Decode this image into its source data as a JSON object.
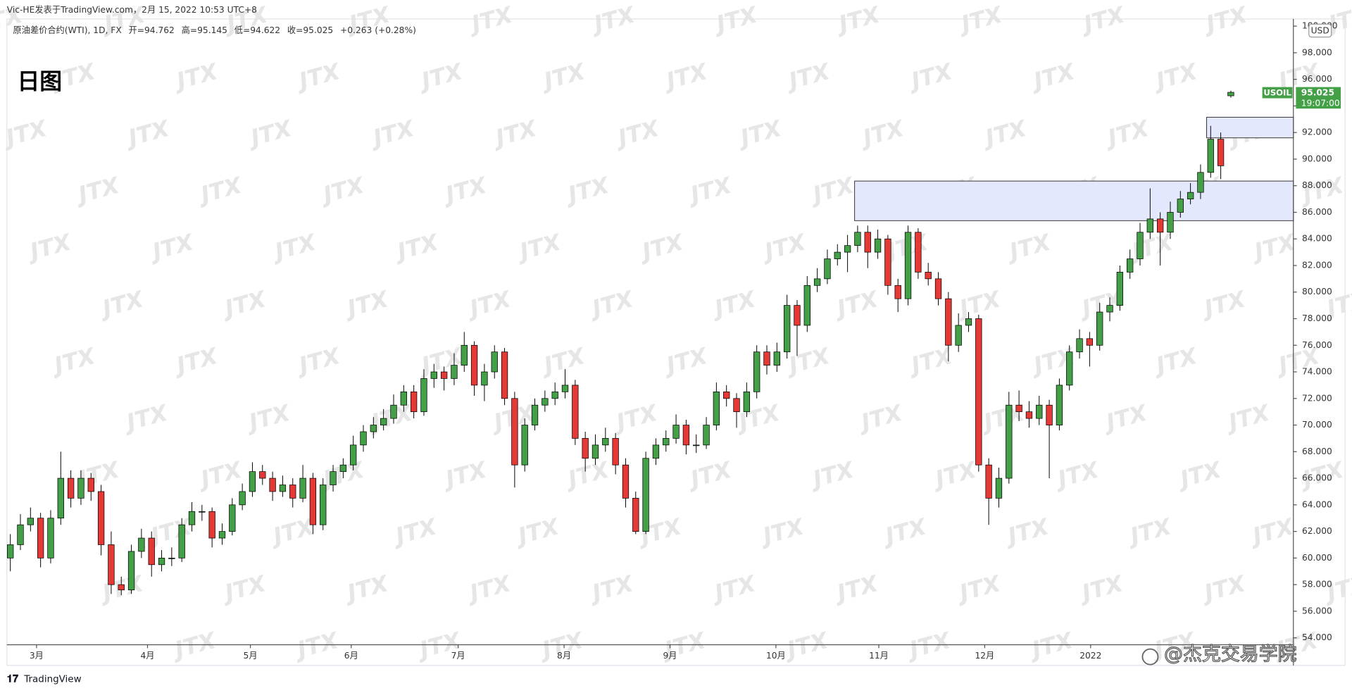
{
  "header": {
    "author_line": "Vic-HE发表于TradingView.com，2月 15, 2022 10:53 UTC+8",
    "symbol_line": "原油差价合约(WTI), 1D, FX",
    "open_label": "开=",
    "high_label": "高=",
    "low_label": "低=",
    "close_label": "收=",
    "change": "+0.263 (+0.28%)",
    "timeframe_title": "日图"
  },
  "footer": {
    "brand": "TradingView",
    "credit": "@杰克交易学院"
  },
  "chart_data": {
    "type": "candlestick",
    "currency": "USD",
    "symbol_tag": "USOIL",
    "countdown": "19:07:00",
    "watermark": "JTX",
    "up_color": "#43a047",
    "down_color": "#e53935",
    "border_color": "#000000",
    "zone_color": "#e3e8fd",
    "xlim": [
      -0.34,
      127.2
    ],
    "ylim": [
      53.48,
      100.54
    ],
    "yticks": [
      {
        "value": 54,
        "label": "54.000"
      },
      {
        "value": 56,
        "label": "56.000"
      },
      {
        "value": 58,
        "label": "58.000"
      },
      {
        "value": 60,
        "label": "60.000"
      },
      {
        "value": 62,
        "label": "62.000"
      },
      {
        "value": 64,
        "label": "64.000"
      },
      {
        "value": 66,
        "label": "66.000"
      },
      {
        "value": 68,
        "label": "68.000"
      },
      {
        "value": 70,
        "label": "70.000"
      },
      {
        "value": 72,
        "label": "72.000"
      },
      {
        "value": 74,
        "label": "74.000"
      },
      {
        "value": 76,
        "label": "76.000"
      },
      {
        "value": 78,
        "label": "78.000"
      },
      {
        "value": 80,
        "label": "80.000"
      },
      {
        "value": 82,
        "label": "82.000"
      },
      {
        "value": 84,
        "label": "84.000"
      },
      {
        "value": 86,
        "label": "86.000"
      },
      {
        "value": 88,
        "label": "88.000"
      },
      {
        "value": 90,
        "label": "90.000"
      },
      {
        "value": 92,
        "label": "92.000"
      },
      {
        "value": 94,
        "label": "94.000"
      },
      {
        "value": 96,
        "label": "96.000"
      },
      {
        "value": 98,
        "label": "98.000"
      },
      {
        "value": 100,
        "label": "100.000"
      }
    ],
    "xticks": [
      {
        "value": 2.6,
        "label": "3月"
      },
      {
        "value": 13.6,
        "label": "4月"
      },
      {
        "value": 23.8,
        "label": "5月"
      },
      {
        "value": 33.8,
        "label": "6月"
      },
      {
        "value": 44.4,
        "label": "7月"
      },
      {
        "value": 54.9,
        "label": "8月"
      },
      {
        "value": 65.4,
        "label": "9月"
      },
      {
        "value": 75.9,
        "label": "10月"
      },
      {
        "value": 86.1,
        "label": "11月"
      },
      {
        "value": 96.6,
        "label": "12月"
      },
      {
        "value": 107.1,
        "label": "2022"
      }
    ],
    "zones": [
      {
        "start": 83.7,
        "range": [
          85.37,
          88.35
        ]
      },
      {
        "start": 118.6,
        "range": [
          91.6,
          93.15
        ]
      }
    ],
    "ohlc": [
      [
        60,
        61.8,
        59,
        61
      ],
      [
        61,
        63.3,
        60.6,
        62.5
      ],
      [
        62.5,
        63.8,
        62,
        63
      ],
      [
        63,
        63.4,
        59.3,
        60
      ],
      [
        60,
        63.6,
        59.6,
        63
      ],
      [
        63,
        68,
        62.5,
        66
      ],
      [
        66,
        66.6,
        63.8,
        64.5
      ],
      [
        64.5,
        66.6,
        64,
        66
      ],
      [
        66,
        66.4,
        64.3,
        65
      ],
      [
        65,
        65.5,
        60.2,
        61
      ],
      [
        61,
        62,
        57.3,
        58
      ],
      [
        58,
        58.6,
        57.2,
        57.6
      ],
      [
        57.6,
        61,
        57.3,
        60.5
      ],
      [
        60.5,
        62.2,
        60,
        61.5
      ],
      [
        61.5,
        62,
        58.6,
        59.5
      ],
      [
        59.5,
        60.6,
        59,
        60
      ],
      [
        60,
        60.8,
        59.4,
        60
      ],
      [
        60,
        63,
        59.7,
        62.5
      ],
      [
        62.5,
        64.2,
        62,
        63.5
      ],
      [
        63.5,
        64,
        62.8,
        63.5
      ],
      [
        63.5,
        63.8,
        60.8,
        61.5
      ],
      [
        61.5,
        62.6,
        61,
        62
      ],
      [
        62,
        64.5,
        61.7,
        64
      ],
      [
        64,
        65.6,
        63.6,
        65
      ],
      [
        65,
        67.2,
        64.6,
        66.5
      ],
      [
        66.5,
        67,
        65.5,
        66
      ],
      [
        66,
        66.5,
        64.3,
        65
      ],
      [
        65,
        66.2,
        64.6,
        65.5
      ],
      [
        65.5,
        66,
        63.8,
        64.5
      ],
      [
        64.5,
        67,
        64.2,
        66
      ],
      [
        66,
        66.4,
        61.8,
        62.5
      ],
      [
        62.5,
        66,
        62.1,
        65.5
      ],
      [
        65.5,
        67,
        65,
        66.5
      ],
      [
        66.5,
        67.5,
        66,
        67
      ],
      [
        67,
        69.2,
        66.6,
        68.5
      ],
      [
        68.5,
        70,
        68,
        69.5
      ],
      [
        69.5,
        70.6,
        69,
        70
      ],
      [
        70,
        71.2,
        69.6,
        70.5
      ],
      [
        70.5,
        72.3,
        70.1,
        71.5
      ],
      [
        71.5,
        73,
        71,
        72.5
      ],
      [
        72.5,
        73,
        70.5,
        71
      ],
      [
        71,
        74.2,
        70.7,
        73.5
      ],
      [
        73.5,
        74.6,
        72.8,
        74
      ],
      [
        74,
        74.4,
        72.6,
        73.5
      ],
      [
        73.5,
        75.4,
        73,
        74.5
      ],
      [
        74.5,
        77,
        74,
        76
      ],
      [
        76,
        76.3,
        72.2,
        73
      ],
      [
        73,
        74.6,
        71.8,
        74
      ],
      [
        74,
        76,
        73.5,
        75.5
      ],
      [
        75.5,
        75.8,
        71.5,
        72
      ],
      [
        72,
        72.5,
        65.3,
        67
      ],
      [
        67,
        70.5,
        66.5,
        70
      ],
      [
        70,
        72,
        69.6,
        71.5
      ],
      [
        71.5,
        72.6,
        71,
        72
      ],
      [
        72,
        73.2,
        71.5,
        72.5
      ],
      [
        72.5,
        74.2,
        72,
        73
      ],
      [
        73,
        73.4,
        68.5,
        69
      ],
      [
        69,
        69.5,
        66.5,
        67.5
      ],
      [
        67.5,
        69.3,
        67,
        68.5
      ],
      [
        68.5,
        69.8,
        68,
        69
      ],
      [
        69,
        69.4,
        66.3,
        67
      ],
      [
        67,
        67.5,
        63.8,
        64.5
      ],
      [
        64.5,
        65,
        61.8,
        62
      ],
      [
        62,
        68,
        61.8,
        67.5
      ],
      [
        67.5,
        69,
        67,
        68.5
      ],
      [
        68.5,
        69.6,
        68,
        69
      ],
      [
        69,
        70.8,
        68.6,
        70
      ],
      [
        70,
        70.4,
        67.8,
        68.5
      ],
      [
        68.5,
        69.3,
        67.9,
        68.5
      ],
      [
        68.5,
        70.6,
        68.2,
        70
      ],
      [
        70,
        73.2,
        69.6,
        72.5
      ],
      [
        72.5,
        73,
        71.4,
        72
      ],
      [
        72,
        72.4,
        69.8,
        71
      ],
      [
        71,
        73.2,
        70.6,
        72.5
      ],
      [
        72.5,
        76,
        72,
        75.5
      ],
      [
        75.5,
        76,
        73.8,
        74.5
      ],
      [
        74.5,
        76.2,
        74,
        75.5
      ],
      [
        75.5,
        79.8,
        75,
        79
      ],
      [
        79,
        79.4,
        75.2,
        77.5
      ],
      [
        77.5,
        81.2,
        77,
        80.5
      ],
      [
        80.5,
        81.8,
        80,
        81
      ],
      [
        81,
        83.2,
        80.6,
        82.5
      ],
      [
        82.5,
        83.6,
        82,
        83
      ],
      [
        83,
        84.3,
        81.5,
        83.5
      ],
      [
        83.5,
        85,
        83,
        84.5
      ],
      [
        84.5,
        85,
        81.8,
        83
      ],
      [
        83,
        84.7,
        82.5,
        84
      ],
      [
        84,
        84.3,
        79.8,
        80.5
      ],
      [
        80.5,
        81,
        78.5,
        79.5
      ],
      [
        79.5,
        85,
        79,
        84.5
      ],
      [
        84.5,
        84.8,
        81,
        81.5
      ],
      [
        81.5,
        82.2,
        80.5,
        81
      ],
      [
        81,
        81.5,
        79,
        79.5
      ],
      [
        79.5,
        80,
        74.8,
        76
      ],
      [
        76,
        78.4,
        75.5,
        77.5
      ],
      [
        77.5,
        78.5,
        77,
        78
      ],
      [
        78,
        78.3,
        66.5,
        67
      ],
      [
        67,
        67.5,
        62.5,
        64.5
      ],
      [
        64.5,
        66.8,
        63.8,
        66
      ],
      [
        66,
        72.5,
        65.6,
        71.5
      ],
      [
        71.5,
        72.6,
        70.3,
        71
      ],
      [
        71,
        71.8,
        69.8,
        70.5
      ],
      [
        70.5,
        72.2,
        70,
        71.5
      ],
      [
        71.5,
        71.9,
        66,
        70
      ],
      [
        70,
        73.5,
        69.6,
        73
      ],
      [
        73,
        76,
        72.6,
        75.5
      ],
      [
        75.5,
        77.2,
        75,
        76.5
      ],
      [
        76.5,
        77,
        74.4,
        76
      ],
      [
        76,
        79.2,
        75.6,
        78.5
      ],
      [
        78.5,
        79.6,
        77.8,
        79
      ],
      [
        79,
        82,
        78.6,
        81.5
      ],
      [
        81.5,
        83.2,
        81,
        82.5
      ],
      [
        82.5,
        85.2,
        82,
        84.5
      ],
      [
        84.5,
        87.8,
        84,
        85.5
      ],
      [
        85.5,
        86,
        82,
        84.5
      ],
      [
        84.5,
        86.8,
        84,
        86
      ],
      [
        86,
        87.6,
        85.6,
        87
      ],
      [
        87,
        88.2,
        86.6,
        87.5
      ],
      [
        87.5,
        89.6,
        87,
        89
      ],
      [
        89,
        92.5,
        88.6,
        91.5
      ],
      [
        91.5,
        92,
        88.5,
        89.5
      ],
      [
        94.762,
        95.145,
        94.622,
        95.025
      ]
    ]
  }
}
